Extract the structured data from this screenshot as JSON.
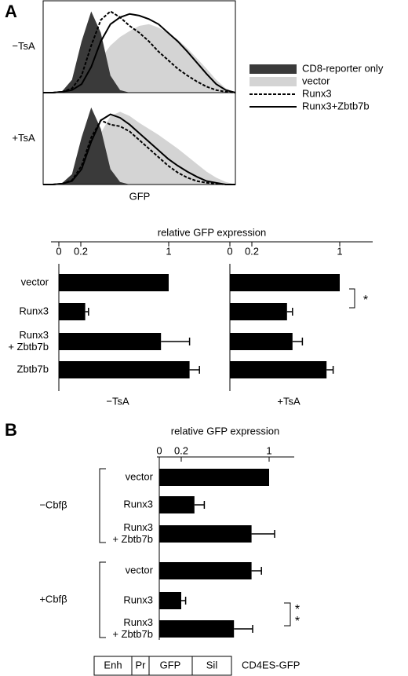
{
  "panel_labels": [
    "A",
    "B"
  ],
  "chart_data": [
    {
      "type": "histogram-overlay",
      "x_label": "GFP",
      "legend": [
        {
          "name": "CD8-reporter only",
          "color": "#3a3a3a",
          "style": "fill"
        },
        {
          "name": "vector",
          "color": "#d4d4d4",
          "style": "fill"
        },
        {
          "name": "Runx3",
          "color": "#000000",
          "style": "dashed"
        },
        {
          "name": "Runx3+Zbtb7b",
          "color": "#000000",
          "style": "solid"
        }
      ],
      "panels": [
        {
          "label": "−TsA",
          "series": [
            {
              "values": [
                0,
                0,
                2,
                15,
                60,
                95,
                70,
                20,
                3,
                0,
                0,
                0,
                0,
                0,
                0,
                0,
                0,
                0,
                0,
                0,
                0
              ]
            },
            {
              "values": [
                0,
                0,
                0,
                2,
                8,
                20,
                40,
                55,
                65,
                72,
                78,
                80,
                76,
                70,
                62,
                52,
                40,
                28,
                15,
                5,
                0
              ]
            },
            {
              "values": [
                0,
                0,
                1,
                5,
                20,
                55,
                85,
                95,
                88,
                78,
                70,
                60,
                48,
                38,
                28,
                20,
                13,
                7,
                3,
                1,
                0
              ]
            },
            {
              "values": [
                0,
                0,
                1,
                3,
                10,
                30,
                60,
                80,
                88,
                92,
                90,
                86,
                80,
                70,
                60,
                48,
                35,
                22,
                10,
                3,
                0
              ]
            }
          ]
        },
        {
          "label": "+TsA",
          "series": [
            {
              "values": [
                0,
                0,
                2,
                12,
                55,
                90,
                65,
                18,
                3,
                0,
                0,
                0,
                0,
                0,
                0,
                0,
                0,
                0,
                0,
                0,
                0
              ]
            },
            {
              "values": [
                0,
                0,
                0,
                2,
                10,
                30,
                60,
                80,
                85,
                80,
                72,
                65,
                58,
                50,
                42,
                33,
                24,
                15,
                8,
                3,
                0
              ]
            },
            {
              "values": [
                0,
                0,
                1,
                5,
                22,
                55,
                75,
                70,
                68,
                62,
                52,
                42,
                32,
                22,
                14,
                8,
                4,
                2,
                1,
                0,
                0
              ]
            },
            {
              "values": [
                0,
                0,
                1,
                4,
                18,
                50,
                75,
                82,
                78,
                70,
                60,
                50,
                40,
                30,
                22,
                15,
                9,
                4,
                2,
                0,
                0
              ]
            }
          ]
        }
      ]
    },
    {
      "type": "hbar",
      "x_label": "relative GFP expression",
      "color": "#000000",
      "categories": [
        "vector",
        "Runx3",
        "Runx3 + Zbtb7b",
        "Zbtb7b"
      ],
      "xlim": [
        0,
        1.3
      ],
      "xticks": [
        0,
        0.2,
        1
      ],
      "panels": [
        {
          "label": "−TsA",
          "values": [
            1.0,
            0.24,
            0.93,
            1.19
          ],
          "errors": [
            0,
            0.03,
            0.26,
            0.09
          ]
        },
        {
          "label": "+TsA",
          "values": [
            1.0,
            0.52,
            0.57,
            0.88
          ],
          "errors": [
            0,
            0.05,
            0.09,
            0.06
          ]
        }
      ],
      "annotation": "*"
    },
    {
      "type": "hbar-groups",
      "x_label": "relative GFP expression",
      "color": "#000000",
      "xlim": [
        0,
        1.25
      ],
      "xticks": [
        0,
        0.2,
        1
      ],
      "groups": [
        {
          "label": "−Cbfβ",
          "categories": [
            "vector",
            "Runx3",
            "Runx3 + Zbtb7b"
          ],
          "values": [
            1.0,
            0.32,
            0.84
          ],
          "errors": [
            0,
            0.09,
            0.21
          ]
        },
        {
          "label": "+Cbfβ",
          "categories": [
            "vector",
            "Runx3",
            "Runx3 + Zbtb7b"
          ],
          "values": [
            0.84,
            0.2,
            0.68
          ],
          "errors": [
            0.09,
            0.04,
            0.17
          ]
        }
      ],
      "annotation": [
        "*",
        "*"
      ]
    }
  ],
  "construct": {
    "parts": [
      "Enh",
      "Pr",
      "GFP",
      "Sil"
    ],
    "label": "CD4ES-GFP"
  }
}
